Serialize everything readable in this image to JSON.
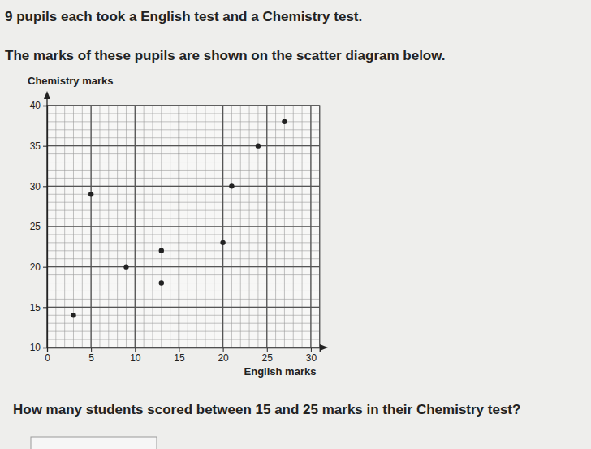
{
  "chart_data": {
    "type": "scatter",
    "title": "9 pupils each took a English test and a Chemistry test.",
    "subtitle": "The marks of these pupils are shown on the scatter diagram below.",
    "annotations": [
      "How many students scored between 15 and 25 marks in their Chemistry test?"
    ],
    "x_label": "English marks",
    "y_label": "Chemistry marks",
    "x": [
      3,
      5,
      9,
      13,
      13,
      20,
      21,
      24,
      27
    ],
    "values": [
      14,
      29,
      20,
      22,
      18,
      23,
      30,
      35,
      38
    ],
    "color": "#222222",
    "marker": "circle",
    "xlim": [
      0,
      31
    ],
    "xticks": [
      0,
      5,
      10,
      15,
      20,
      25,
      30
    ],
    "ylim": [
      10,
      40
    ],
    "yticks": [
      10,
      15,
      20,
      25,
      30,
      35,
      40
    ],
    "grid": true
  }
}
